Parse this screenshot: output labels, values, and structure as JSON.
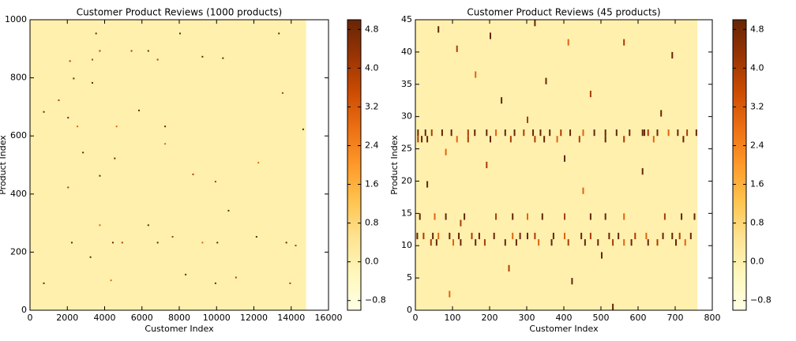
{
  "chart_data": [
    {
      "type": "heatmap",
      "title": "Customer Product Reviews (1000 products)",
      "xlabel": "Customer Index",
      "ylabel": "Product Index",
      "xlim": [
        0,
        16000
      ],
      "ylim": [
        0,
        1000
      ],
      "xticks": [
        0,
        2000,
        4000,
        6000,
        8000,
        10000,
        12000,
        14000,
        16000
      ],
      "yticks": [
        0,
        200,
        400,
        600,
        800,
        1000
      ],
      "extent": [
        0,
        14800,
        0,
        1000
      ],
      "fill_value": 0,
      "colorscale": [
        "#ffffe5",
        "#fff7bc",
        "#fee391",
        "#fec44f",
        "#fe9929",
        "#ec7014",
        "#cc4c02",
        "#993404",
        "#662506"
      ],
      "clim": [
        -1,
        5
      ],
      "cticks": [
        {
          "value": -0.8,
          "label": "−0.8"
        },
        {
          "value": 0,
          "label": "0.0"
        },
        0.8,
        1.6,
        2.4,
        3.2,
        {
          "value": 4,
          "label": "4.0"
        },
        4.8
      ],
      "x": [
        700,
        1500,
        2000,
        2100,
        2300,
        2500,
        2800,
        3300,
        3300,
        3500,
        3700,
        3700,
        4600,
        4500,
        5400,
        6300,
        5800,
        6800,
        7200,
        7200,
        8000,
        8700,
        9200,
        10300,
        9900,
        10600,
        12200,
        13300,
        13500,
        14600,
        2000,
        2200,
        3200,
        3700,
        4400,
        4900,
        6300,
        6800,
        7600,
        8300,
        9200,
        10000,
        11000,
        12100,
        13700,
        14200,
        700,
        4300,
        9900,
        13900
      ],
      "y": [
        680,
        720,
        660,
        855,
        795,
        630,
        540,
        860,
        780,
        950,
        890,
        460,
        630,
        520,
        890,
        890,
        685,
        860,
        630,
        570,
        950,
        465,
        870,
        865,
        440,
        340,
        505,
        950,
        745,
        620,
        420,
        230,
        180,
        290,
        230,
        230,
        290,
        230,
        250,
        120,
        230,
        230,
        110,
        250,
        230,
        220,
        90,
        100,
        90,
        90
      ],
      "values": [
        5,
        4,
        5,
        4,
        5,
        3,
        5,
        4,
        5,
        5,
        4,
        5,
        3,
        5,
        4,
        5,
        5,
        4,
        5,
        3,
        5,
        4,
        5,
        5,
        4,
        5,
        3,
        5,
        4,
        5,
        4,
        5,
        5,
        3,
        5,
        4,
        5,
        5,
        4,
        5,
        3,
        5,
        4,
        5,
        5,
        4,
        5,
        3,
        5,
        4
      ]
    },
    {
      "type": "heatmap",
      "title": "Customer Product Reviews (45 products)",
      "xlabel": "Customer Index",
      "ylabel": "Product Index",
      "xlim": [
        0,
        800
      ],
      "ylim": [
        0,
        45
      ],
      "xticks": [
        0,
        100,
        200,
        300,
        400,
        500,
        600,
        700,
        800
      ],
      "yticks": [
        0,
        5,
        10,
        15,
        20,
        25,
        30,
        35,
        40,
        45
      ],
      "extent": [
        0,
        760,
        0,
        45
      ],
      "fill_value": 0,
      "colorscale": [
        "#ffffe5",
        "#fff7bc",
        "#fee391",
        "#fec44f",
        "#fe9929",
        "#ec7014",
        "#cc4c02",
        "#993404",
        "#662506"
      ],
      "clim": [
        -1,
        5
      ],
      "cticks": [
        {
          "value": -0.8,
          "label": "−0.8"
        },
        {
          "value": 0,
          "label": "0.0"
        },
        0.8,
        1.6,
        2.4,
        3.2,
        {
          "value": 4,
          "label": "4.0"
        },
        4.8
      ],
      "x": [
        5,
        25,
        42,
        70,
        95,
        140,
        158,
        190,
        215,
        240,
        265,
        290,
        315,
        335,
        360,
        390,
        415,
        450,
        480,
        510,
        540,
        575,
        610,
        615,
        625,
        650,
        680,
        705,
        730,
        755,
        5,
        15,
        30,
        110,
        140,
        200,
        255,
        320,
        345,
        380,
        440,
        510,
        560,
        640,
        720,
        3,
        20,
        45,
        60,
        90,
        115,
        150,
        170,
        210,
        260,
        280,
        300,
        320,
        370,
        400,
        445,
        470,
        520,
        545,
        590,
        620,
        665,
        690,
        710,
        740,
        40,
        55,
        100,
        120,
        160,
        185,
        240,
        270,
        330,
        365,
        410,
        455,
        490,
        530,
        560,
        580,
        625,
        650,
        700,
        725,
        10,
        50,
        80,
        130,
        215,
        260,
        300,
        340,
        400,
        470,
        510,
        560,
        670,
        715,
        750,
        60,
        110,
        200,
        320,
        410,
        560,
        690,
        160,
        350,
        470,
        230,
        300,
        660,
        80,
        400,
        190,
        610,
        30,
        450,
        120,
        500,
        250,
        420,
        90,
        530
      ],
      "y": [
        27,
        27,
        27,
        27,
        27,
        27,
        27,
        27,
        27,
        27,
        27,
        27,
        27,
        27,
        27,
        27,
        27,
        27,
        27,
        27,
        27,
        27,
        27,
        27,
        27,
        27,
        27,
        27,
        27,
        27,
        26,
        26,
        26,
        26,
        26,
        26,
        26,
        26,
        26,
        26,
        26,
        26,
        26,
        26,
        26,
        11,
        11,
        11,
        11,
        11,
        11,
        11,
        11,
        11,
        11,
        11,
        11,
        11,
        11,
        11,
        11,
        11,
        11,
        11,
        11,
        11,
        11,
        11,
        11,
        11,
        10,
        10,
        10,
        10,
        10,
        10,
        10,
        10,
        10,
        10,
        10,
        10,
        10,
        10,
        10,
        10,
        10,
        10,
        10,
        10,
        14,
        14,
        14,
        14,
        14,
        14,
        14,
        14,
        14,
        14,
        14,
        14,
        14,
        14,
        14,
        43,
        40,
        42,
        44,
        41,
        41,
        39,
        36,
        35,
        33,
        32,
        29,
        30,
        24,
        23,
        22,
        21,
        19,
        18,
        13,
        8,
        6,
        4,
        2,
        0
      ],
      "values": [
        5,
        5,
        4,
        5,
        5,
        4,
        5,
        5,
        3,
        5,
        5,
        4,
        5,
        5,
        5,
        4,
        5,
        3,
        5,
        5,
        5,
        5,
        5,
        5,
        4,
        5,
        3,
        5,
        4,
        5,
        4,
        5,
        5,
        3,
        4,
        5,
        4,
        4,
        5,
        3,
        4,
        5,
        4,
        3,
        5,
        5,
        4,
        5,
        3,
        5,
        5,
        4,
        5,
        5,
        3,
        5,
        5,
        4,
        5,
        3,
        5,
        4,
        5,
        5,
        4,
        3,
        5,
        5,
        4,
        5,
        4,
        5,
        3,
        5,
        5,
        4,
        5,
        5,
        3,
        5,
        4,
        5,
        5,
        4,
        3,
        5,
        5,
        4,
        5,
        3,
        5,
        3,
        5,
        5,
        4,
        5,
        3,
        5,
        4,
        5,
        5,
        3,
        4,
        5,
        5,
        5,
        4,
        5,
        5,
        3,
        4,
        5,
        3,
        5,
        4,
        5,
        4,
        5,
        3,
        5,
        4,
        5,
        5,
        3,
        4,
        5,
        4,
        5,
        3,
        5
      ]
    }
  ]
}
